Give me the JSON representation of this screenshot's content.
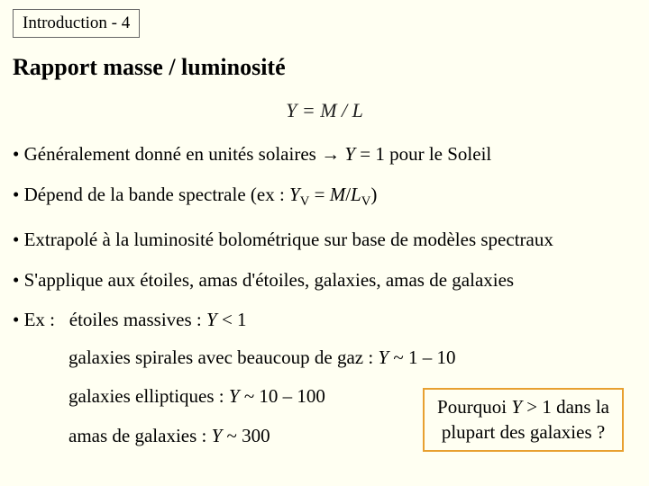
{
  "header": "Introduction - 4",
  "title": "Rapport masse / luminosité",
  "formula": "Y = M / L",
  "bullets": {
    "b1_pre": "• Généralement donné en unités solaires → ",
    "b1_var": "Y",
    "b1_post": " = 1 pour le Soleil",
    "b2_pre": "• Dépend de la bande spectrale (ex : ",
    "b2_yv": "Y",
    "b2_sub1": "V",
    "b2_mid": " = ",
    "b2_m": "M",
    "b2_slash": "/",
    "b2_l": "L",
    "b2_sub2": "V",
    "b2_post": ")",
    "b3": "• Extrapolé à la luminosité bolométrique sur base de modèles spectraux",
    "b4": "• S'applique aux étoiles, amas d'étoiles, galaxies, amas de galaxies",
    "ex_label": "• Ex :",
    "ex1_pre": "étoiles massives : ",
    "ex1_var": "Y",
    "ex1_post": " < 1",
    "ex2_pre": "galaxies spirales avec beaucoup de gaz : ",
    "ex2_var": "Y",
    "ex2_post": " ~ 1 – 10",
    "ex3_pre": "galaxies elliptiques : ",
    "ex3_var": "Y",
    "ex3_post": " ~ 10 – 100",
    "ex4_pre": "amas de galaxies : ",
    "ex4_var": "Y",
    "ex4_post": " ~ 300"
  },
  "callout": {
    "line1_pre": "Pourquoi ",
    "line1_var": "Y",
    "line1_post": " > 1 dans la",
    "line2": "plupart des galaxies ?"
  },
  "colors": {
    "background": "#fffff2",
    "callout_border": "#e8a030"
  }
}
